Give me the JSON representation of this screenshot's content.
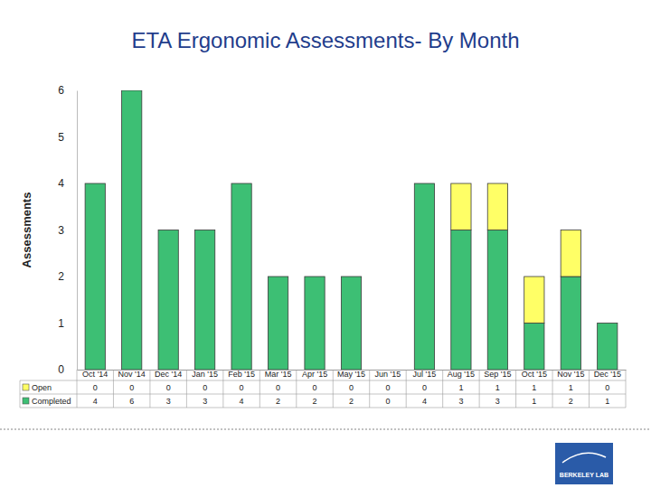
{
  "chart_data": {
    "type": "bar",
    "title": "ETA Ergonomic Assessments- By Month",
    "y_label": "Assessments",
    "categories": [
      "Oct '14",
      "Nov '14",
      "Dec '14",
      "Jan '15",
      "Feb '15",
      "Mar '15",
      "Apr '15",
      "May '15",
      "Jun '15",
      "Jul '15",
      "Aug '15",
      "Sep '15",
      "Oct '15",
      "Nov '15",
      "Dec '15"
    ],
    "series": [
      {
        "name": "Completed",
        "color": "#3dbf74",
        "values": [
          4,
          6,
          3,
          3,
          4,
          2,
          2,
          2,
          0,
          4,
          3,
          3,
          1,
          2,
          1
        ]
      },
      {
        "name": "Open",
        "color": "#ffff66",
        "values": [
          0,
          0,
          0,
          0,
          0,
          0,
          0,
          0,
          0,
          0,
          1,
          1,
          1,
          1,
          0
        ]
      }
    ],
    "stacked": true,
    "ylim": [
      0,
      6
    ],
    "yticks": [
      0,
      1,
      2,
      3,
      4,
      5,
      6
    ],
    "grid": false,
    "annotations": [
      "BERKELEY LAB"
    ]
  }
}
